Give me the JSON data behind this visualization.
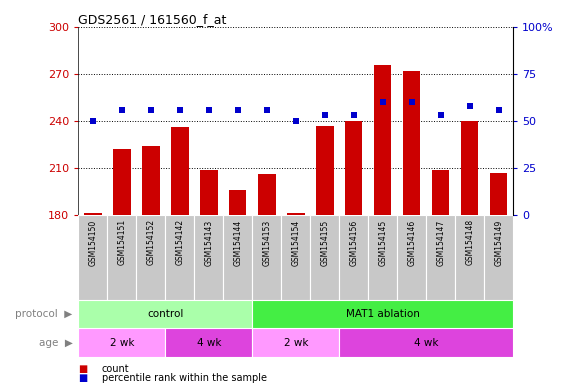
{
  "title": "GDS2561 / 161560_f_at",
  "samples": [
    "GSM154150",
    "GSM154151",
    "GSM154152",
    "GSM154142",
    "GSM154143",
    "GSM154144",
    "GSM154153",
    "GSM154154",
    "GSM154155",
    "GSM154156",
    "GSM154145",
    "GSM154146",
    "GSM154147",
    "GSM154148",
    "GSM154149"
  ],
  "count_values": [
    181,
    222,
    224,
    236,
    209,
    196,
    206,
    181,
    237,
    240,
    276,
    272,
    209,
    240,
    207
  ],
  "percentile_values": [
    50,
    56,
    56,
    56,
    56,
    56,
    56,
    50,
    53,
    53,
    60,
    60,
    53,
    58,
    56
  ],
  "ylim_left": [
    180,
    300
  ],
  "ylim_right": [
    0,
    100
  ],
  "yticks_left": [
    180,
    210,
    240,
    270,
    300
  ],
  "yticks_right": [
    0,
    25,
    50,
    75,
    100
  ],
  "bar_color": "#CC0000",
  "dot_color": "#0000CC",
  "sample_bg_color": "#C8C8C8",
  "plot_bg": "#FFFFFF",
  "protocol_groups": [
    {
      "label": "control",
      "start": 0,
      "end": 6,
      "color": "#AAFFAA"
    },
    {
      "label": "MAT1 ablation",
      "start": 6,
      "end": 15,
      "color": "#44EE44"
    }
  ],
  "age_groups": [
    {
      "label": "2 wk",
      "start": 0,
      "end": 3,
      "color": "#FF99FF"
    },
    {
      "label": "4 wk",
      "start": 3,
      "end": 6,
      "color": "#DD44DD"
    },
    {
      "label": "2 wk",
      "start": 6,
      "end": 9,
      "color": "#FF99FF"
    },
    {
      "label": "4 wk",
      "start": 9,
      "end": 15,
      "color": "#DD44DD"
    }
  ],
  "gridline_color": "#000000",
  "left_label_color": "#CC0000",
  "right_label_color": "#0000CC",
  "right_tick_pct_label": "100%"
}
